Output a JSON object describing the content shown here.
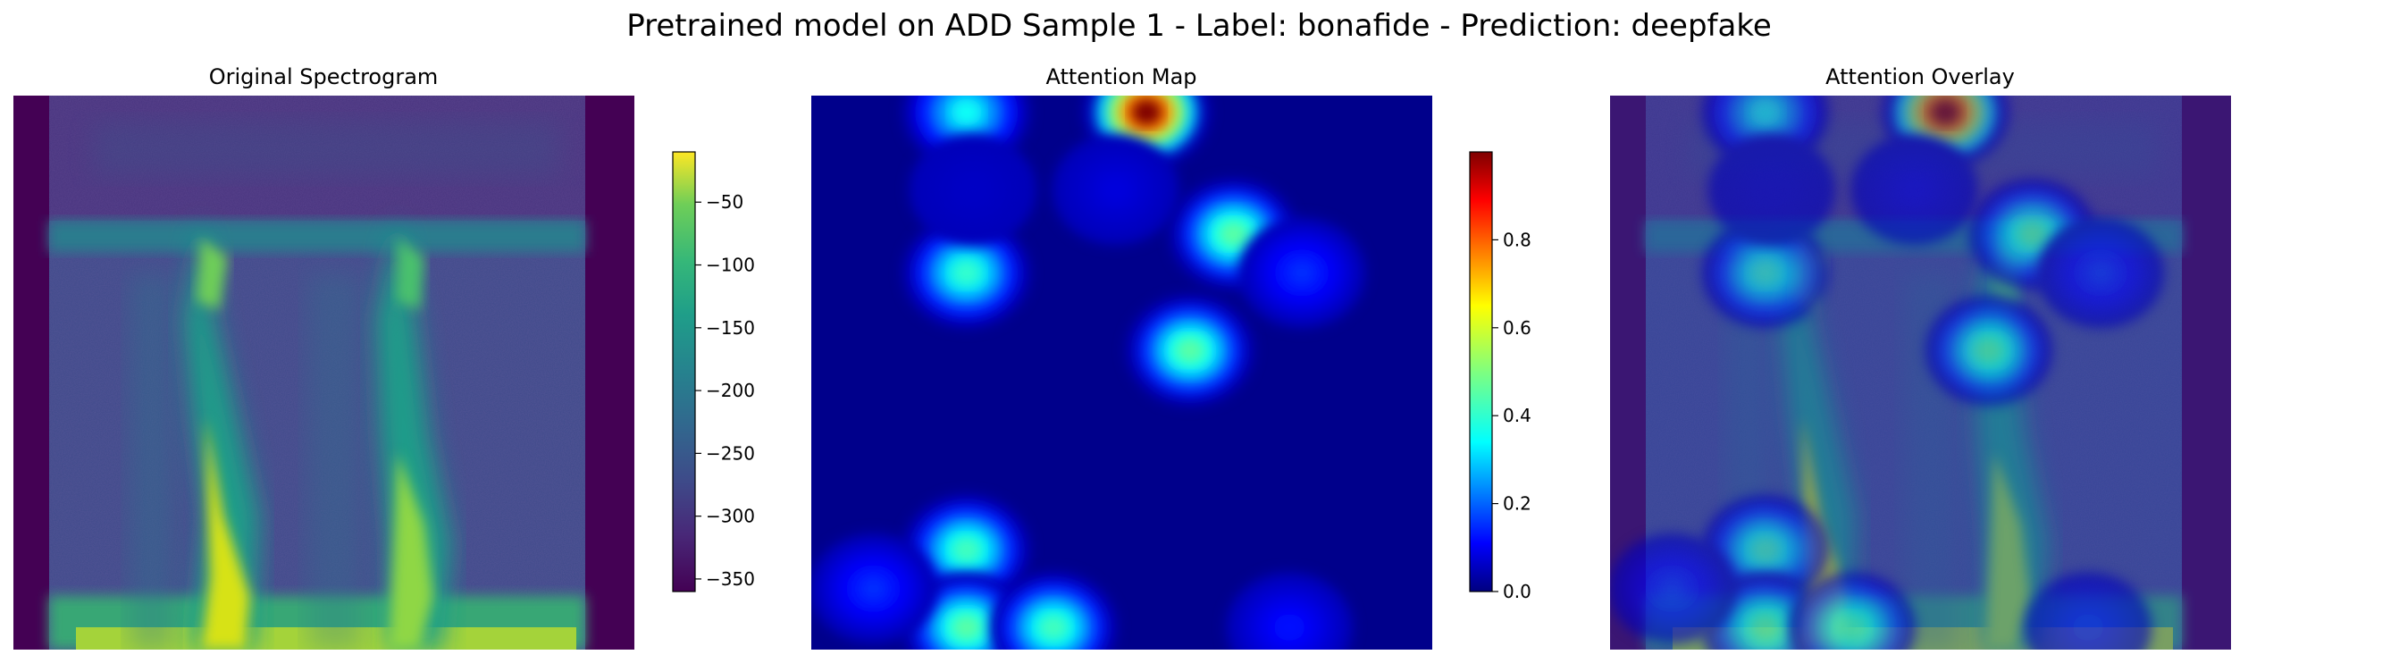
{
  "figure": {
    "title": "Pretrained model on ADD Sample 1 - Label: bonafide - Prediction: deepfake"
  },
  "chart_data": [
    {
      "type": "heatmap",
      "title": "Original Spectrogram",
      "colormap": "viridis",
      "axes": "off",
      "colorbar": {
        "range": [
          -360,
          -10
        ],
        "ticks": [
          -50,
          -100,
          -150,
          -200,
          -250,
          -300,
          -350
        ],
        "tick_labels": [
          "−50",
          "−100",
          "−150",
          "−200",
          "−250",
          "−300",
          "−350"
        ]
      }
    },
    {
      "type": "heatmap",
      "title": "Attention Map",
      "colormap": "jet",
      "axes": "off",
      "colorbar": {
        "range": [
          0.0,
          1.0
        ],
        "ticks": [
          0.0,
          0.2,
          0.4,
          0.6,
          0.8
        ],
        "tick_labels": [
          "0.0",
          "0.2",
          "0.4",
          "0.6",
          "0.8"
        ]
      },
      "hotspots": [
        {
          "x": 0.25,
          "y": 0.03,
          "value": 0.35
        },
        {
          "x": 0.54,
          "y": 0.03,
          "value": 1.0
        },
        {
          "x": 0.25,
          "y": 0.32,
          "value": 0.4
        },
        {
          "x": 0.68,
          "y": 0.25,
          "value": 0.45
        },
        {
          "x": 0.61,
          "y": 0.46,
          "value": 0.45
        },
        {
          "x": 0.25,
          "y": 0.82,
          "value": 0.42
        },
        {
          "x": 0.25,
          "y": 0.96,
          "value": 0.45
        },
        {
          "x": 0.39,
          "y": 0.96,
          "value": 0.42
        },
        {
          "x": 0.79,
          "y": 0.32,
          "value": 0.15
        },
        {
          "x": 0.1,
          "y": 0.89,
          "value": 0.15
        },
        {
          "x": 0.77,
          "y": 0.96,
          "value": 0.12
        },
        {
          "x": 0.49,
          "y": 0.17,
          "value": 0.08
        },
        {
          "x": 0.26,
          "y": 0.17,
          "value": 0.06
        }
      ]
    },
    {
      "type": "heatmap",
      "title": "Attention Overlay",
      "colormap": "jet over viridis",
      "axes": "off"
    }
  ]
}
